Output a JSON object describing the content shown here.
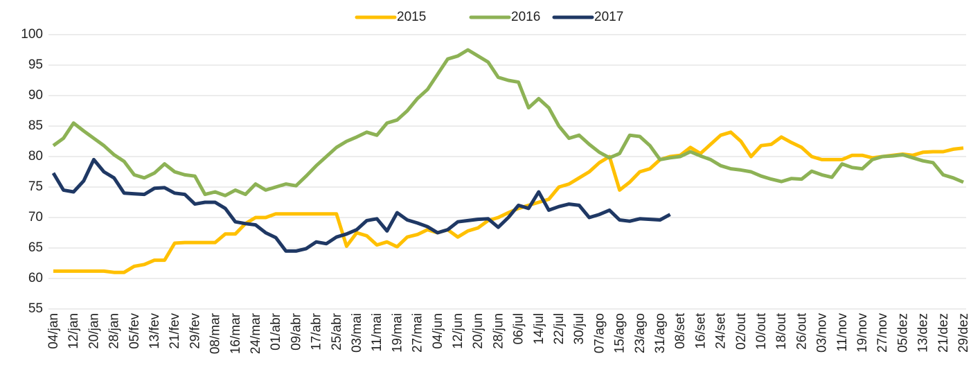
{
  "chart_data": {
    "type": "line",
    "categories": [
      "04/jan",
      null,
      "12/jan",
      null,
      "20/jan",
      null,
      "28/jan",
      null,
      "05/fev",
      null,
      "13/fev",
      null,
      "21/fev",
      null,
      "29/fev",
      null,
      "08/mar",
      null,
      "16/mar",
      null,
      "24/mar",
      null,
      "01/abr",
      null,
      "09/abr",
      null,
      "17/abr",
      null,
      "25/abr",
      null,
      "03/mai",
      null,
      "11/mai",
      null,
      "19/mai",
      null,
      "27/mai",
      null,
      "04/jun",
      null,
      "12/jun",
      null,
      "20/jun",
      null,
      "28/jun",
      null,
      "06/jul",
      null,
      "14/jul",
      null,
      "22/jul",
      null,
      "30/jul",
      null,
      "07/ago",
      null,
      "15/ago",
      null,
      "23/ago",
      null,
      "31/ago",
      null,
      "08/set",
      null,
      "16/set",
      null,
      "24/set",
      null,
      "02/out",
      null,
      "10/out",
      null,
      "18/out",
      null,
      "26/out",
      null,
      "03/nov",
      null,
      "11/nov",
      null,
      "19/nov",
      null,
      "27/nov",
      null,
      "05/dez",
      null,
      "13/dez",
      null,
      "21/dez",
      null,
      "29/dez"
    ],
    "series": [
      {
        "name": "2015",
        "color": "#ffc000",
        "values": [
          61.2,
          61.2,
          61.2,
          61.2,
          61.2,
          61.2,
          61,
          61,
          62,
          62.3,
          63,
          63,
          65.8,
          65.9,
          65.9,
          65.9,
          65.9,
          67.3,
          67.3,
          69,
          70,
          70,
          70.6,
          70.6,
          70.6,
          70.6,
          70.6,
          70.6,
          70.6,
          65.3,
          67.5,
          67,
          65.5,
          66,
          65.2,
          66.8,
          67.2,
          68,
          67.5,
          68,
          66.8,
          67.8,
          68.3,
          69.5,
          70,
          70.8,
          71.5,
          72,
          72.5,
          73,
          75,
          75.5,
          76.5,
          77.5,
          79,
          80,
          74.5,
          75.8,
          77.5,
          78,
          79.5,
          80,
          80.2,
          81.5,
          80.5,
          82,
          83.5,
          84,
          82.5,
          80,
          81.8,
          82,
          83.2,
          82.3,
          81.5,
          80,
          79.5,
          79.5,
          79.5,
          80.2,
          80.2,
          79.8,
          80,
          80.2,
          80.4,
          80.2,
          80.7,
          80.8,
          80.8,
          81.2,
          81.4
        ]
      },
      {
        "name": "2016",
        "color": "#8db255",
        "values": [
          81.8,
          83,
          85.5,
          84.2,
          83,
          81.8,
          80.3,
          79.2,
          77,
          76.5,
          77.3,
          78.8,
          77.5,
          77,
          76.8,
          73.8,
          74.2,
          73.6,
          74.5,
          73.8,
          75.5,
          74.5,
          75,
          75.5,
          75.2,
          76.8,
          78.5,
          80,
          81.5,
          82.5,
          83.2,
          84,
          83.5,
          85.5,
          86,
          87.5,
          89.5,
          91,
          93.5,
          96,
          96.5,
          97.5,
          96.5,
          95.5,
          93,
          92.5,
          92.2,
          88,
          89.5,
          88,
          85,
          83,
          83.5,
          82,
          80.7,
          79.8,
          80.5,
          83.5,
          83.3,
          81.8,
          79.5,
          79.8,
          80,
          80.8,
          80.1,
          79.5,
          78.5,
          78,
          77.8,
          77.5,
          76.8,
          76.3,
          75.9,
          76.4,
          76.3,
          77.6,
          77,
          76.6,
          78.8,
          78.2,
          78,
          79.5,
          80,
          80.1,
          80.3,
          79.8,
          79.3,
          79,
          77,
          76.5,
          75.8
        ]
      },
      {
        "name": "2017",
        "color": "#1f3864",
        "values": [
          77.3,
          74.5,
          74.2,
          76,
          79.5,
          77.5,
          76.5,
          74,
          73.9,
          73.8,
          74.8,
          74.9,
          74,
          73.8,
          72.2,
          72.5,
          72.5,
          71.5,
          69.3,
          69,
          68.8,
          67.5,
          66.7,
          64.5,
          64.5,
          64.9,
          66,
          65.7,
          66.8,
          67.3,
          68,
          69.5,
          69.8,
          67.8,
          70.8,
          69.6,
          69.1,
          68.5,
          67.5,
          68,
          69.3,
          69.5,
          69.7,
          69.8,
          68.4,
          70,
          72,
          71.5,
          74.2,
          71.2,
          71.8,
          72.2,
          72,
          70,
          70.5,
          71.2,
          69.6,
          69.4,
          69.8,
          69.7,
          69.6,
          70.5,
          null,
          null,
          null,
          null,
          null,
          null,
          null,
          null,
          null,
          null,
          null,
          null,
          null,
          null,
          null,
          null,
          null,
          null,
          null,
          null,
          null,
          null,
          null,
          null,
          null,
          null,
          null,
          null,
          null
        ]
      }
    ],
    "ylim": [
      55,
      100
    ],
    "yticks": [
      55,
      60,
      65,
      70,
      75,
      80,
      85,
      90,
      95,
      100
    ],
    "grid": true,
    "legend": "top"
  }
}
